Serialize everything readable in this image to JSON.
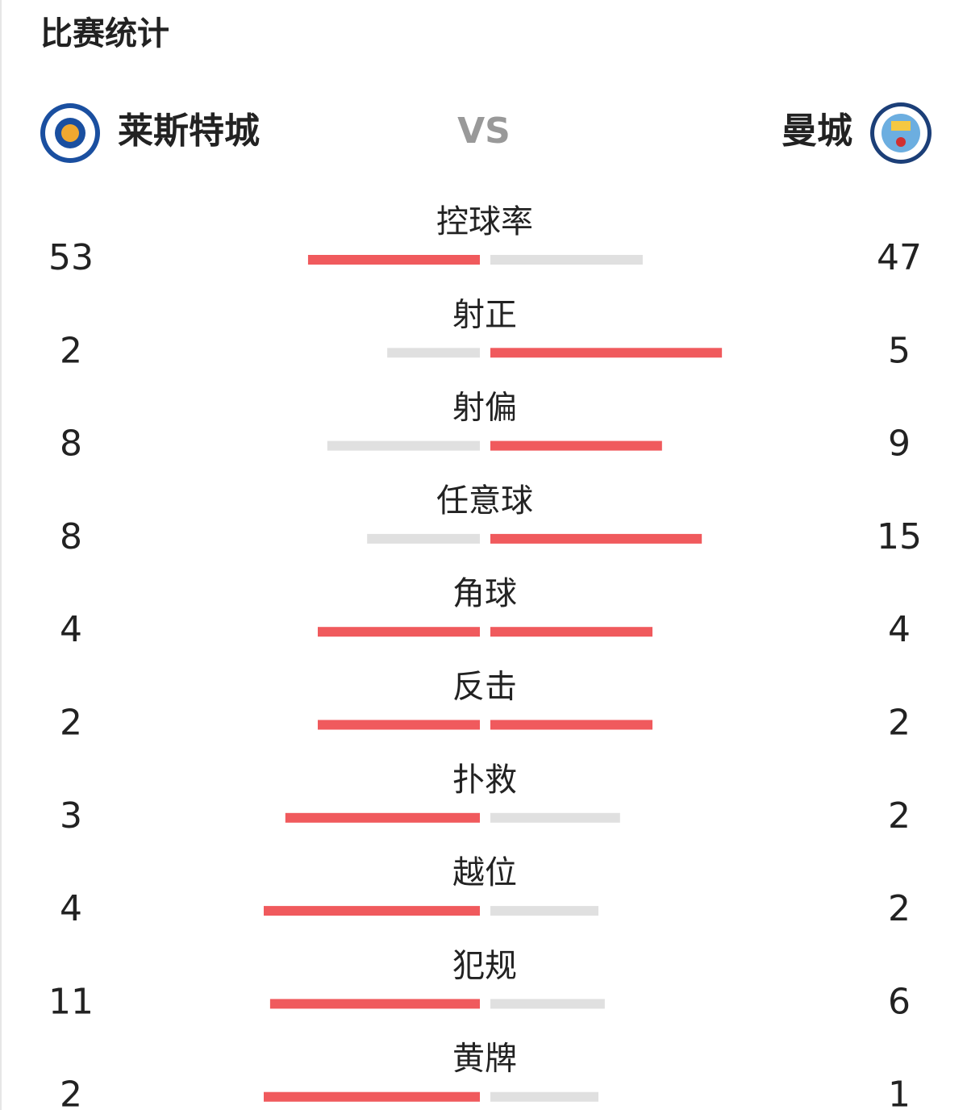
{
  "header": {
    "title": "比赛统计"
  },
  "teams": {
    "home": "莱斯特城",
    "vs": "VS",
    "away": "曼城"
  },
  "stats": [
    {
      "label": "控球率",
      "home": 53,
      "away": 47
    },
    {
      "label": "射正",
      "home": 2,
      "away": 5
    },
    {
      "label": "射偏",
      "home": 8,
      "away": 9
    },
    {
      "label": "任意球",
      "home": 8,
      "away": 15
    },
    {
      "label": "角球",
      "home": 4,
      "away": 4
    },
    {
      "label": "反击",
      "home": 2,
      "away": 2
    },
    {
      "label": "扑救",
      "home": 3,
      "away": 2
    },
    {
      "label": "越位",
      "home": 4,
      "away": 2
    },
    {
      "label": "犯规",
      "home": 11,
      "away": 6
    },
    {
      "label": "黄牌",
      "home": 2,
      "away": 1
    }
  ]
}
